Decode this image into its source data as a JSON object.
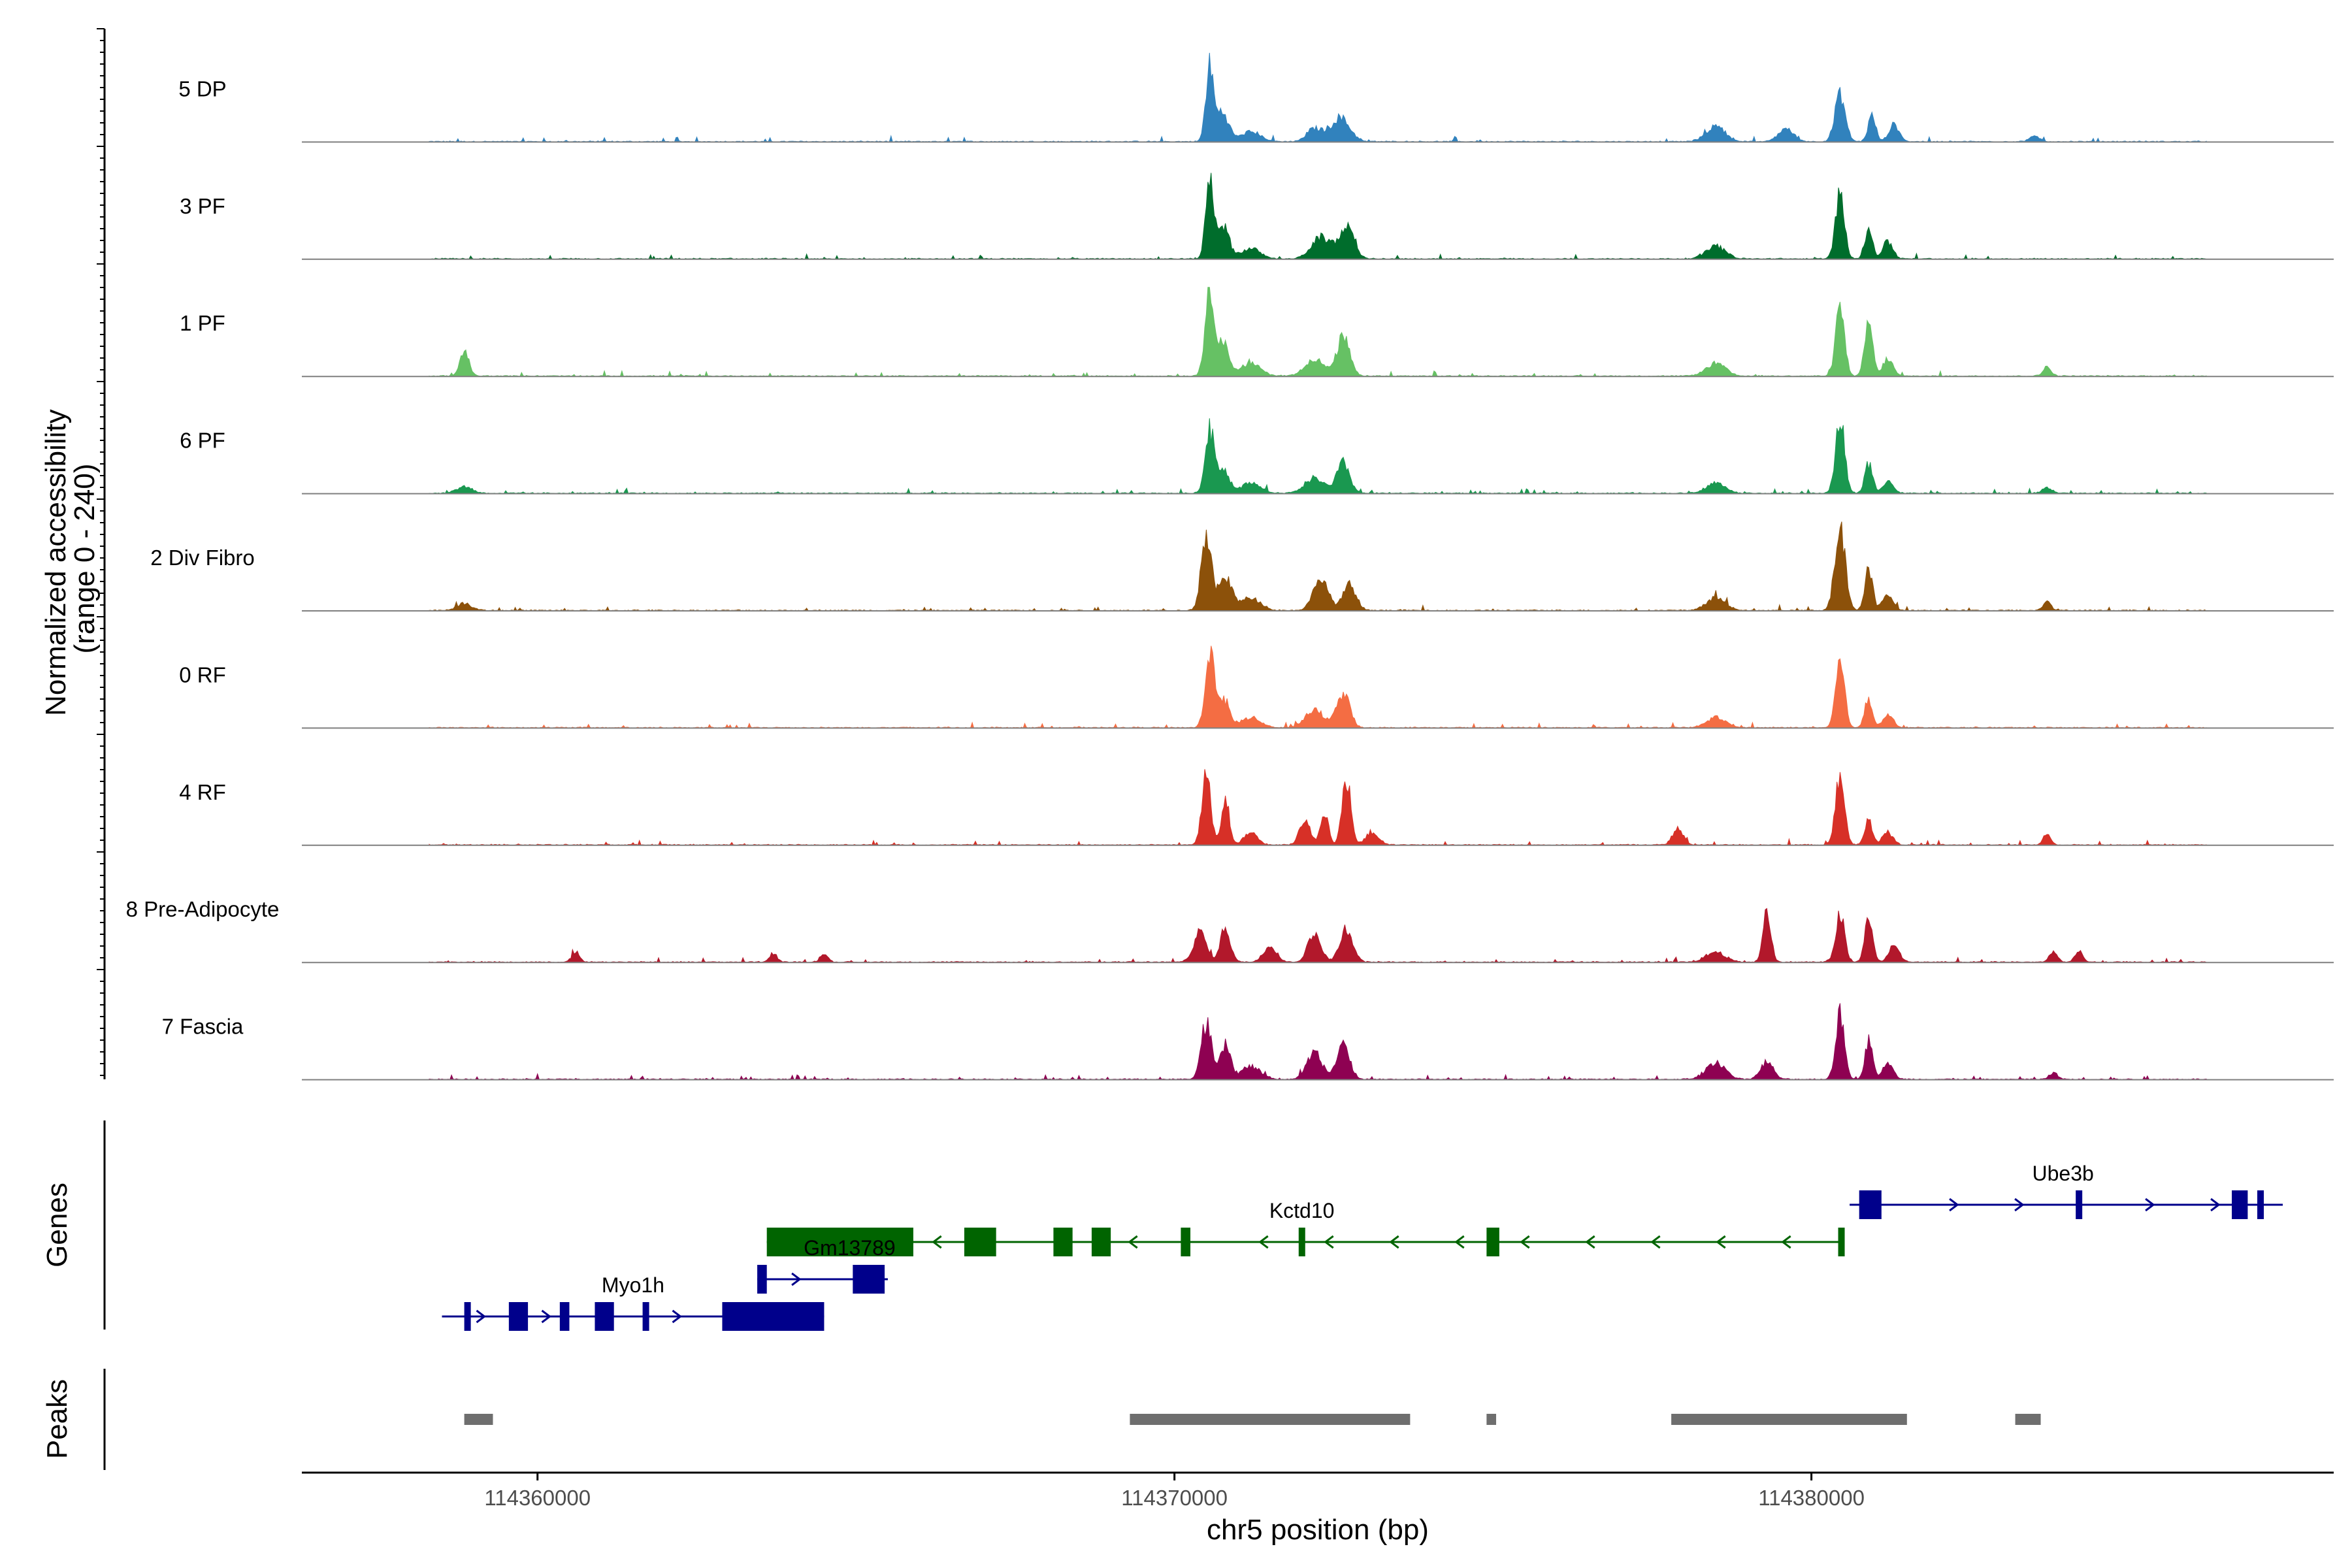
{
  "chart_data": {
    "type": "area",
    "chromosome": "chr5",
    "xlabel": "chr5 position (bp)",
    "x_range": [
      114356300,
      114388200
    ],
    "x_ticks": [
      114360000,
      114370000,
      114380000
    ],
    "x_tick_labels": [
      "114360000",
      "114370000",
      "114380000"
    ],
    "coverage_ylabel": "Normalized accessibility\n(range 0 - 240)",
    "y_range": [
      0,
      240
    ],
    "genes_label": "Genes",
    "peaks_label": "Peaks",
    "tracks": [
      {
        "name": "5 DP",
        "color": "#3182BD",
        "scale": 1.0,
        "peaks": [
          [
            114370550,
            0.85,
            60
          ],
          [
            114370750,
            0.35,
            100
          ],
          [
            114371200,
            0.12,
            150
          ],
          [
            114372600,
            0.28,
            150
          ],
          [
            114372200,
            0.15,
            120
          ],
          [
            114378500,
            0.18,
            150
          ],
          [
            114379600,
            0.15,
            120
          ],
          [
            114380450,
            0.55,
            80
          ],
          [
            114380950,
            0.3,
            60
          ],
          [
            114381300,
            0.2,
            80
          ],
          [
            114383500,
            0.06,
            80
          ]
        ]
      },
      {
        "name": "3 PF",
        "color": "#006D2C",
        "scale": 1.0,
        "peaks": [
          [
            114370550,
            0.9,
            60
          ],
          [
            114370750,
            0.4,
            100
          ],
          [
            114371200,
            0.12,
            150
          ],
          [
            114372300,
            0.25,
            150
          ],
          [
            114372700,
            0.35,
            120
          ],
          [
            114378500,
            0.15,
            150
          ],
          [
            114380450,
            0.75,
            70
          ],
          [
            114380900,
            0.35,
            60
          ],
          [
            114381200,
            0.2,
            80
          ]
        ]
      },
      {
        "name": "1 PF",
        "color": "#66C164",
        "scale": 1.0,
        "peaks": [
          [
            114358850,
            0.3,
            70
          ],
          [
            114370550,
            1.0,
            70
          ],
          [
            114370750,
            0.4,
            100
          ],
          [
            114371200,
            0.15,
            150
          ],
          [
            114372200,
            0.2,
            150
          ],
          [
            114372650,
            0.45,
            100
          ],
          [
            114378500,
            0.15,
            150
          ],
          [
            114380450,
            0.8,
            70
          ],
          [
            114380900,
            0.65,
            60
          ],
          [
            114381200,
            0.2,
            80
          ],
          [
            114383700,
            0.12,
            60
          ]
        ]
      },
      {
        "name": "6 PF",
        "color": "#1A9850",
        "scale": 1.0,
        "peaks": [
          [
            114358850,
            0.08,
            120
          ],
          [
            114370550,
            0.7,
            70
          ],
          [
            114370750,
            0.3,
            100
          ],
          [
            114371200,
            0.12,
            150
          ],
          [
            114372200,
            0.18,
            150
          ],
          [
            114372650,
            0.35,
            100
          ],
          [
            114378500,
            0.12,
            150
          ],
          [
            114380450,
            0.9,
            70
          ],
          [
            114380900,
            0.35,
            60
          ],
          [
            114381200,
            0.15,
            80
          ],
          [
            114383700,
            0.06,
            80
          ]
        ]
      },
      {
        "name": "2 Div Fibro",
        "color": "#8C510A",
        "scale": 1.0,
        "peaks": [
          [
            114358850,
            0.08,
            120
          ],
          [
            114370500,
            0.85,
            80
          ],
          [
            114370800,
            0.4,
            100
          ],
          [
            114371200,
            0.15,
            150
          ],
          [
            114372300,
            0.35,
            120
          ],
          [
            114372750,
            0.3,
            100
          ],
          [
            114378500,
            0.15,
            150
          ],
          [
            114380450,
            1.0,
            80
          ],
          [
            114380900,
            0.5,
            60
          ],
          [
            114381200,
            0.2,
            80
          ],
          [
            114383700,
            0.12,
            60
          ]
        ]
      },
      {
        "name": "0 RF",
        "color": "#F46D43",
        "scale": 1.0,
        "peaks": [
          [
            114370550,
            0.85,
            70
          ],
          [
            114370750,
            0.35,
            100
          ],
          [
            114371200,
            0.12,
            150
          ],
          [
            114372200,
            0.2,
            150
          ],
          [
            114372650,
            0.4,
            100
          ],
          [
            114378500,
            0.12,
            150
          ],
          [
            114380450,
            0.75,
            70
          ],
          [
            114380900,
            0.35,
            60
          ],
          [
            114381200,
            0.15,
            80
          ]
        ]
      },
      {
        "name": "4 RF",
        "color": "#D73027",
        "scale": 1.0,
        "peaks": [
          [
            114370500,
            0.85,
            70
          ],
          [
            114370800,
            0.55,
            60
          ],
          [
            114371200,
            0.15,
            100
          ],
          [
            114372050,
            0.3,
            80
          ],
          [
            114372350,
            0.4,
            60
          ],
          [
            114372700,
            0.75,
            70
          ],
          [
            114373100,
            0.15,
            100
          ],
          [
            114377900,
            0.2,
            80
          ],
          [
            114380450,
            0.8,
            70
          ],
          [
            114380900,
            0.3,
            60
          ],
          [
            114381200,
            0.15,
            80
          ],
          [
            114383700,
            0.12,
            60
          ]
        ]
      },
      {
        "name": "8 Pre-Adipocyte",
        "color": "#B2182B",
        "scale": 1.0,
        "peaks": [
          [
            114360600,
            0.12,
            60
          ],
          [
            114363700,
            0.1,
            60
          ],
          [
            114364500,
            0.1,
            60
          ],
          [
            114370400,
            0.35,
            100
          ],
          [
            114370800,
            0.4,
            80
          ],
          [
            114371500,
            0.2,
            100
          ],
          [
            114372200,
            0.35,
            100
          ],
          [
            114372700,
            0.4,
            100
          ],
          [
            114378500,
            0.12,
            150
          ],
          [
            114379300,
            0.65,
            60
          ],
          [
            114380450,
            0.55,
            70
          ],
          [
            114380900,
            0.55,
            60
          ],
          [
            114381300,
            0.2,
            80
          ],
          [
            114383800,
            0.12,
            60
          ],
          [
            114384200,
            0.12,
            60
          ]
        ]
      },
      {
        "name": "7 Fascia",
        "color": "#8E0152",
        "scale": 1.0,
        "peaks": [
          [
            114370500,
            0.65,
            80
          ],
          [
            114370800,
            0.4,
            80
          ],
          [
            114371200,
            0.15,
            150
          ],
          [
            114372200,
            0.3,
            120
          ],
          [
            114372650,
            0.4,
            100
          ],
          [
            114378500,
            0.2,
            150
          ],
          [
            114379300,
            0.2,
            100
          ],
          [
            114380450,
            0.75,
            70
          ],
          [
            114380900,
            0.45,
            60
          ],
          [
            114381200,
            0.2,
            80
          ],
          [
            114383800,
            0.08,
            60
          ]
        ]
      }
    ],
    "genes": [
      {
        "name": "Kctd10",
        "strand": "-",
        "color": "#006400",
        "start": 114363600,
        "end": 114380500,
        "exons": [
          [
            114363600,
            114365900
          ],
          [
            114366700,
            114367200
          ],
          [
            114368100,
            114368400
          ],
          [
            114368700,
            114369000
          ],
          [
            114370100,
            114370250
          ],
          [
            114371950,
            114372050
          ],
          [
            114374900,
            114375100
          ],
          [
            114380420,
            114380500
          ]
        ]
      },
      {
        "name": "Ube3b",
        "strand": "+",
        "color": "#00008B",
        "start": 114380600,
        "end": 114387400,
        "exons": [
          [
            114380750,
            114381100
          ],
          [
            114384150,
            114384250
          ],
          [
            114386600,
            114386850
          ],
          [
            114387000,
            114387100
          ]
        ]
      },
      {
        "name": "Gm13789",
        "strand": "+",
        "color": "#00008B",
        "start": 114363450,
        "end": 114365500,
        "exons": [
          [
            114363450,
            114363600
          ],
          [
            114364950,
            114365450
          ]
        ]
      },
      {
        "name": "Myo1h",
        "strand": "+",
        "color": "#00008B",
        "start": 114358500,
        "end": 114364500,
        "exons": [
          [
            114358850,
            114358950
          ],
          [
            114359550,
            114359850
          ],
          [
            114360350,
            114360500
          ],
          [
            114360900,
            114361200
          ],
          [
            114361650,
            114361750
          ],
          [
            114362900,
            114364500
          ]
        ]
      }
    ],
    "peaks_track": {
      "color": "#6E6E6E",
      "regions": [
        [
          114358850,
          114359300
        ],
        [
          114369300,
          114373700
        ],
        [
          114374900,
          114375050
        ],
        [
          114377800,
          114381500
        ],
        [
          114383200,
          114383600
        ]
      ]
    }
  }
}
